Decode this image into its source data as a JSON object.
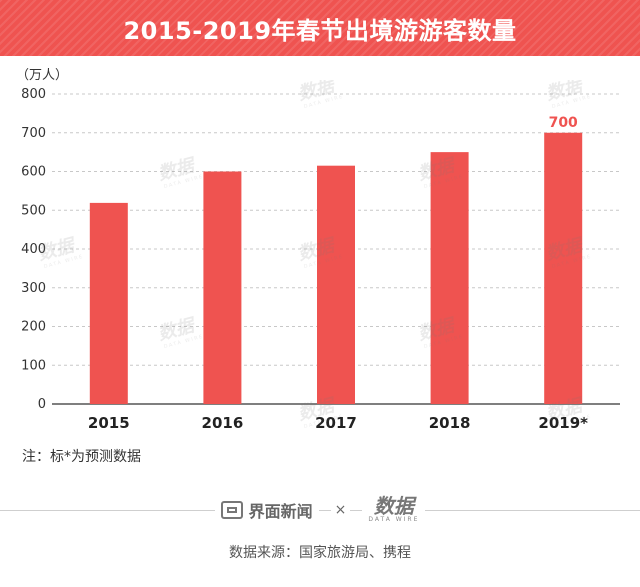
{
  "title": "2015-2019年春节出境游游客数量",
  "unit_label": "（万人）",
  "note": "注：标*为预测数据",
  "footer": {
    "brand_name": "界面新闻",
    "times": "×",
    "datawire_main": "数据",
    "datawire_sub": "DATA WIRE",
    "source": "数据来源：国家旅游局、携程"
  },
  "watermark": {
    "main": "数据",
    "sub": "DATA WIRE"
  },
  "colors": {
    "banner": "#ef5350",
    "bar": "#ef5350",
    "value_label": "#ef5350"
  },
  "chart_data": {
    "type": "bar",
    "title": "2015-2019年春节出境游游客数量",
    "ylabel": "（万人）",
    "xlabel": "",
    "categories": [
      "2015",
      "2016",
      "2017",
      "2018",
      "2019*"
    ],
    "values": [
      519,
      600,
      615,
      650,
      700
    ],
    "data_labels": {
      "2019*": "700"
    },
    "ylim": [
      0,
      800
    ],
    "yticks": [
      0,
      100,
      200,
      300,
      400,
      500,
      600,
      700,
      800
    ],
    "grid": true,
    "legend": "none"
  }
}
